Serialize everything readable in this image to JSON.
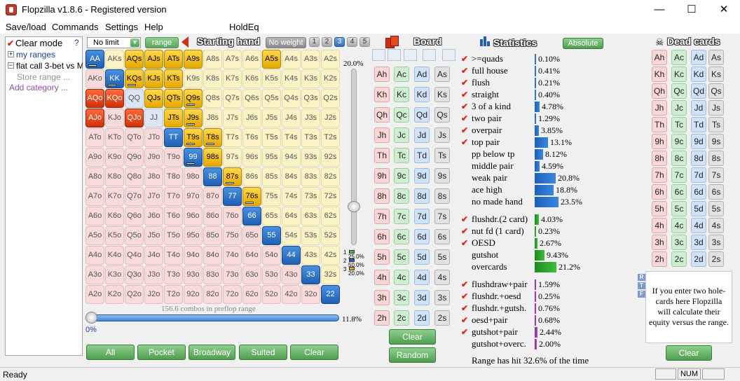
{
  "app": {
    "title": "Flopzilla v1.8.6 - Registered version",
    "minimize": "—",
    "maximize": "☐",
    "close": "✕"
  },
  "menu": [
    "Save/load",
    "Commands",
    "Settings",
    "Help",
    "HoldEq"
  ],
  "left": {
    "clear_mode": "Clear mode",
    "help": "?",
    "items": [
      "my ranges",
      "flat call 3-bet vs M",
      "Store range ...",
      "Add category ..."
    ]
  },
  "range_toolbar": {
    "limit": "No limit",
    "range_button": "range",
    "starting_hand": "Starting hand",
    "no_weight": "No weight",
    "weights": [
      "1",
      "2",
      "3",
      "4",
      "5"
    ]
  },
  "grid_rows": [
    [
      "AA",
      "AKs",
      "AQs",
      "AJs",
      "ATs",
      "A9s",
      "A8s",
      "A7s",
      "A6s",
      "A5s",
      "A4s",
      "A3s",
      "A2s"
    ],
    [
      "AKo",
      "KK",
      "KQs",
      "KJs",
      "KTs",
      "K9s",
      "K8s",
      "K7s",
      "K6s",
      "K5s",
      "K4s",
      "K3s",
      "K2s"
    ],
    [
      "AQo",
      "KQo",
      "QQ",
      "QJs",
      "QTs",
      "Q9s",
      "Q8s",
      "Q7s",
      "Q6s",
      "Q5s",
      "Q4s",
      "Q3s",
      "Q2s"
    ],
    [
      "AJo",
      "KJo",
      "QJo",
      "JJ",
      "JTs",
      "J9s",
      "J8s",
      "J7s",
      "J6s",
      "J5s",
      "J4s",
      "J3s",
      "J2s"
    ],
    [
      "ATo",
      "KTo",
      "QTo",
      "JTo",
      "TT",
      "T9s",
      "T8s",
      "T7s",
      "T6s",
      "T5s",
      "T4s",
      "T3s",
      "T2s"
    ],
    [
      "A9o",
      "K9o",
      "Q9o",
      "J9o",
      "T9o",
      "99",
      "98s",
      "97s",
      "96s",
      "95s",
      "94s",
      "93s",
      "92s"
    ],
    [
      "A8o",
      "K8o",
      "Q8o",
      "J8o",
      "T8o",
      "98o",
      "88",
      "87s",
      "86s",
      "85s",
      "84s",
      "83s",
      "82s"
    ],
    [
      "A7o",
      "K7o",
      "Q7o",
      "J7o",
      "T7o",
      "97o",
      "87o",
      "77",
      "76s",
      "75s",
      "74s",
      "73s",
      "72s"
    ],
    [
      "A6o",
      "K6o",
      "Q6o",
      "J6o",
      "T6o",
      "96o",
      "86o",
      "76o",
      "66",
      "65s",
      "64s",
      "63s",
      "62s"
    ],
    [
      "A5o",
      "K5o",
      "Q5o",
      "J5o",
      "T5o",
      "95o",
      "85o",
      "75o",
      "65o",
      "55",
      "54s",
      "53s",
      "52s"
    ],
    [
      "A4o",
      "K4o",
      "Q4o",
      "J4o",
      "T4o",
      "94o",
      "84o",
      "74o",
      "64o",
      "54o",
      "44",
      "43s",
      "42s"
    ],
    [
      "A3o",
      "K3o",
      "Q3o",
      "J3o",
      "T3o",
      "93o",
      "83o",
      "73o",
      "63o",
      "53o",
      "43o",
      "33",
      "32s"
    ],
    [
      "A2o",
      "K2o",
      "Q2o",
      "J2o",
      "T2o",
      "92o",
      "82o",
      "72o",
      "62o",
      "52o",
      "42o",
      "32o",
      "22"
    ]
  ],
  "grid_selected": [
    "AA",
    "AQs",
    "AJs",
    "ATs",
    "A9s",
    "A5s",
    "KK",
    "KQs",
    "KJs",
    "KTs",
    "AQo",
    "KQo",
    "QJs",
    "QTs",
    "Q9s",
    "AJo",
    "QJo",
    "JTs",
    "J9s",
    "TT",
    "T9s",
    "T8s",
    "99",
    "98s",
    "88",
    "87s",
    "77",
    "76s",
    "66",
    "55",
    "44",
    "33",
    "22"
  ],
  "grid_weighted": [
    "AA",
    "KK",
    "KQs",
    "Q9s",
    "J9s",
    "T9s",
    "T8s",
    "99",
    "87s",
    "76s"
  ],
  "weight_legend": [
    {
      "n": "1",
      "pct": "25.0%"
    },
    {
      "n": "2",
      "pct": "50.0%"
    },
    {
      "n": "3",
      "pct": "20.0%"
    }
  ],
  "slider": {
    "vertical_pct": "20.0%",
    "horizontal_left": "0%",
    "horizontal_right": "11.8%",
    "combos": "156.6 combos in preflop range"
  },
  "grid_buttons": [
    "All",
    "Pocket",
    "Broadway",
    "Suited",
    "Clear"
  ],
  "board": {
    "header": "Board",
    "ranks": [
      "A",
      "K",
      "Q",
      "J",
      "T",
      "9",
      "8",
      "7",
      "6",
      "5",
      "4",
      "3",
      "2"
    ],
    "suits": [
      "h",
      "c",
      "d",
      "s"
    ],
    "clear": "Clear",
    "random": "Random"
  },
  "stats": {
    "header": "Statistics",
    "absolute": "Absolute",
    "groups": [
      [
        {
          "label": ">=quads",
          "pct": "0.10%",
          "v": 0.1,
          "check": true,
          "color": "b"
        },
        {
          "label": "full house",
          "pct": "0.41%",
          "v": 0.41,
          "check": true,
          "color": "b"
        },
        {
          "label": "flush",
          "pct": "0.21%",
          "v": 0.21,
          "check": true,
          "color": "b"
        },
        {
          "label": "straight",
          "pct": "0.40%",
          "v": 0.4,
          "check": true,
          "color": "b"
        },
        {
          "label": "3 of a kind",
          "pct": "4.78%",
          "v": 4.78,
          "check": true,
          "color": "b"
        },
        {
          "label": "two pair",
          "pct": "1.29%",
          "v": 1.29,
          "check": true,
          "color": "b"
        },
        {
          "label": "overpair",
          "pct": "3.85%",
          "v": 3.85,
          "check": true,
          "color": "b"
        },
        {
          "label": "top pair",
          "pct": "13.1%",
          "v": 13.1,
          "check": true,
          "color": "b"
        },
        {
          "label": "pp below tp",
          "pct": "8.12%",
          "v": 8.12,
          "check": false,
          "color": "b"
        },
        {
          "label": "middle pair",
          "pct": "4.59%",
          "v": 4.59,
          "check": false,
          "color": "b"
        },
        {
          "label": "weak pair",
          "pct": "20.8%",
          "v": 20.8,
          "check": false,
          "color": "b"
        },
        {
          "label": "ace high",
          "pct": "18.8%",
          "v": 18.8,
          "check": false,
          "color": "b"
        },
        {
          "label": "no made hand",
          "pct": "23.5%",
          "v": 23.5,
          "check": false,
          "color": "b"
        }
      ],
      [
        {
          "label": "flushdr.(2 card)",
          "pct": "4.03%",
          "v": 4.03,
          "check": true,
          "color": "g"
        },
        {
          "label": "nut fd (1 card)",
          "pct": "0.23%",
          "v": 0.23,
          "check": true,
          "color": "g"
        },
        {
          "label": "OESD",
          "pct": "2.67%",
          "v": 2.67,
          "check": true,
          "color": "g"
        },
        {
          "label": "gutshot",
          "pct": "9.43%",
          "v": 9.43,
          "check": false,
          "color": "g"
        },
        {
          "label": "overcards",
          "pct": "21.2%",
          "v": 21.2,
          "check": false,
          "color": "g"
        }
      ],
      [
        {
          "label": "flushdraw+pair",
          "pct": "1.59%",
          "v": 1.59,
          "check": true,
          "color": "m"
        },
        {
          "label": "flushdr.+oesd",
          "pct": "0.25%",
          "v": 0.25,
          "check": true,
          "color": "m"
        },
        {
          "label": "flushdr.+gutsh.",
          "pct": "0.76%",
          "v": 0.76,
          "check": true,
          "color": "m"
        },
        {
          "label": "oesd+pair",
          "pct": "0.68%",
          "v": 0.68,
          "check": true,
          "color": "m"
        },
        {
          "label": "gutshot+pair",
          "pct": "2.44%",
          "v": 2.44,
          "check": true,
          "color": "m"
        },
        {
          "label": "gutshot+overc.",
          "pct": "2.00%",
          "v": 2.0,
          "check": false,
          "color": "m"
        }
      ]
    ],
    "range_hit": "Range has hit 32.6% of the time"
  },
  "dead": {
    "header": "Dead cards",
    "info": "If you enter two hole-cards here Flopzilla will calculate their equity versus the range.",
    "clear": "Clear",
    "rtf": [
      "R",
      "T",
      "F"
    ]
  },
  "status": {
    "ready": "Ready",
    "num": "NUM"
  },
  "colors": {
    "suited": "#fbf3c6",
    "offsuit": "#f8dada",
    "pair": "#dde6f5",
    "selected_suited": "#e6a800",
    "selected_offsuit": "#d0300a",
    "selected_pair": "#1e5fb3"
  }
}
